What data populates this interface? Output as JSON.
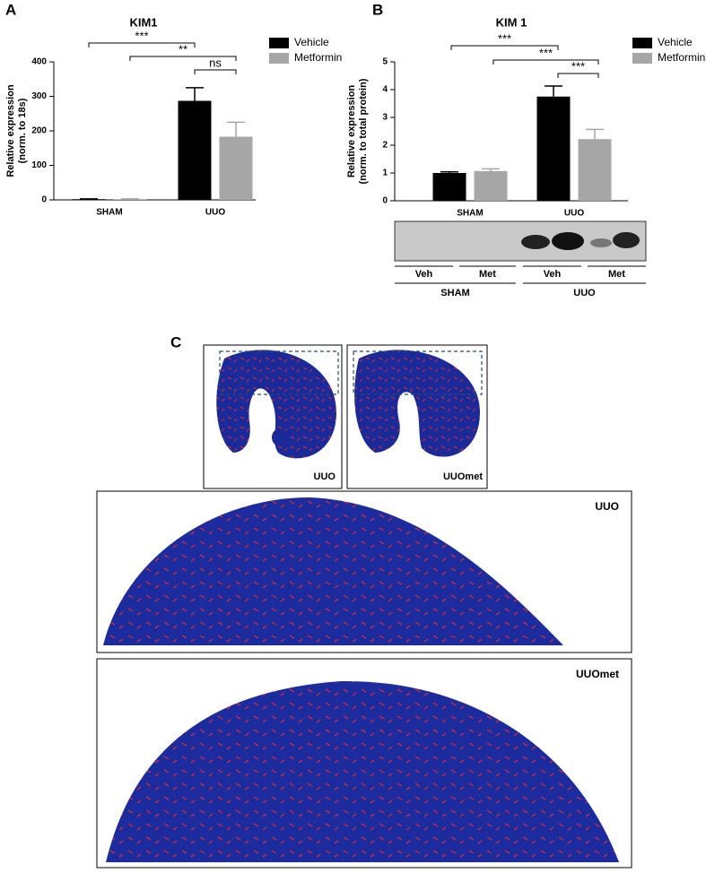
{
  "chart_data": [
    {
      "type": "bar",
      "title": "KIM1",
      "ylabel": [
        "Relative  expression",
        "(norm. to 18s)"
      ],
      "categories": [
        "SHAM",
        "UUO"
      ],
      "series": [
        {
          "name": "Vehicle",
          "color": "#000000",
          "values": [
            2,
            287
          ],
          "errors": [
            1,
            38
          ]
        },
        {
          "name": "Metformin",
          "color": "#a6a6a6",
          "values": [
            2,
            183
          ],
          "errors": [
            1,
            42
          ]
        }
      ],
      "ylim": [
        0,
        400
      ],
      "yticks": [
        0,
        100,
        200,
        300,
        400
      ],
      "legend": "right",
      "annotations": [
        "***",
        "**",
        "ns"
      ]
    },
    {
      "type": "bar",
      "title": "KIM 1",
      "ylabel": [
        "Relative  expression",
        "(norm. to total protein)"
      ],
      "categories": [
        "SHAM",
        "UUO"
      ],
      "series": [
        {
          "name": "Vehicle",
          "color": "#000000",
          "values": [
            1.0,
            3.75
          ],
          "errors": [
            0.04,
            0.38
          ]
        },
        {
          "name": "Metformin",
          "color": "#a6a6a6",
          "values": [
            1.07,
            2.22
          ],
          "errors": [
            0.08,
            0.35
          ]
        }
      ],
      "ylim": [
        0,
        5
      ],
      "yticks": [
        0,
        1,
        2,
        3,
        4,
        5
      ],
      "legend": "right",
      "annotations": [
        "***",
        "***",
        "***"
      ]
    }
  ],
  "panel_labels": [
    "A",
    "B",
    "C"
  ],
  "blot": {
    "treatments": [
      "Veh",
      "Met",
      "Veh",
      "Met"
    ],
    "groups": [
      "SHAM",
      "UUO"
    ]
  },
  "images": {
    "small": [
      "UUO",
      "UUOmet"
    ],
    "large": [
      "UUO",
      "UUOmet"
    ]
  }
}
